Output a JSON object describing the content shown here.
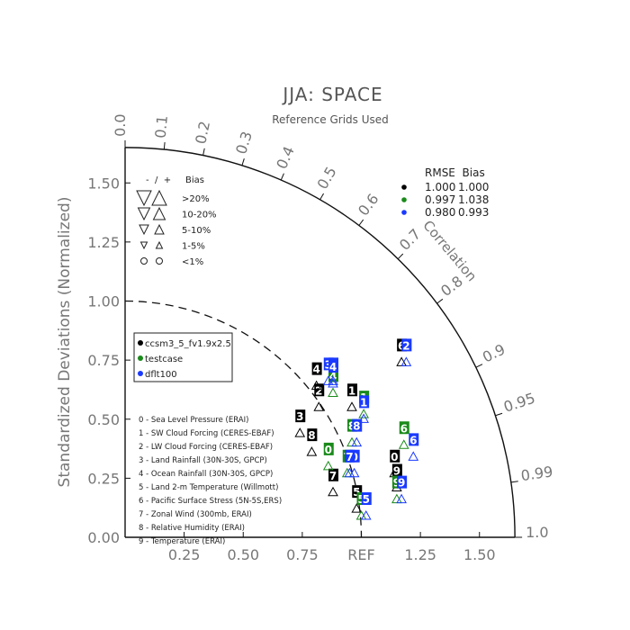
{
  "chart_data": {
    "type": "taylor",
    "title": "JJA: SPACE",
    "subtitle": "Reference Grids Used",
    "ylabel": "Standardized Deviations (Normalized)",
    "correlation_label": "Correlation",
    "ref_label": "REF",
    "std_range": [
      0,
      1.65
    ],
    "x_ticks": [
      "0.25",
      "0.50",
      "0.75",
      "1.25",
      "1.50"
    ],
    "y_ticks": [
      "0.00",
      "0.25",
      "0.50",
      "0.75",
      "1.00",
      "1.25",
      "1.50"
    ],
    "corr_ticks": [
      "0.0",
      "0.1",
      "0.2",
      "0.3",
      "0.4",
      "0.5",
      "0.6",
      "0.7",
      "0.8",
      "0.9",
      "0.95",
      "0.99",
      "1.0"
    ],
    "bias_legend": {
      "header": "-  /  +     Bias",
      "rows": [
        ">20%",
        "10-20%",
        "5-10%",
        "1-5%",
        "<1%"
      ]
    },
    "rmse_table": {
      "header": "RMSE  Bias",
      "rows": [
        {
          "color": "#000000",
          "rmse": "1.000",
          "bias": "1.000"
        },
        {
          "color": "#1a8a1a",
          "rmse": "0.997",
          "bias": "1.038"
        },
        {
          "color": "#1a3aff",
          "rmse": "0.980",
          "bias": "0.993"
        }
      ]
    },
    "cases": [
      {
        "name": "ccsm3_5_fv1.9x2.5",
        "color": "#000000"
      },
      {
        "name": "testcase",
        "color": "#1a8a1a"
      },
      {
        "name": "dflt100",
        "color": "#1a3aff"
      }
    ],
    "variables": [
      "0 - Sea Level Pressure (ERAI)",
      "1 - SW Cloud Forcing (CERES-EBAF)",
      "2 - LW Cloud Forcing (CERES-EBAF)",
      "3 - Land Rainfall (30N-30S, GPCP)",
      "4 - Ocean Rainfall (30N-30S, GPCP)",
      "5 - Land 2-m Temperature (Willmott)",
      "6 - Pacific Surface Stress (5N-5S,ERS)",
      "7 - Zonal Wind (300mb, ERAI)",
      "8 - Relative Humidity (ERAI)",
      "9 - Temperature (ERAI)"
    ],
    "points": [
      {
        "label": "0",
        "case": 0,
        "x": 1.14,
        "y": 0.34
      },
      {
        "label": "1",
        "case": 0,
        "x": 0.96,
        "y": 0.62
      },
      {
        "label": "2",
        "case": 0,
        "x": 0.82,
        "y": 0.62
      },
      {
        "label": "3",
        "case": 0,
        "x": 0.74,
        "y": 0.51
      },
      {
        "label": "4",
        "case": 0,
        "x": 0.81,
        "y": 0.71
      },
      {
        "label": "5",
        "case": 0,
        "x": 0.98,
        "y": 0.19
      },
      {
        "label": "6",
        "case": 0,
        "x": 1.17,
        "y": 0.81
      },
      {
        "label": "7",
        "case": 0,
        "x": 0.88,
        "y": 0.26
      },
      {
        "label": "8",
        "case": 0,
        "x": 0.79,
        "y": 0.43
      },
      {
        "label": "9",
        "case": 0,
        "x": 1.15,
        "y": 0.28
      },
      {
        "label": "0",
        "case": 1,
        "x": 0.86,
        "y": 0.37
      },
      {
        "label": "1",
        "case": 1,
        "x": 1.01,
        "y": 0.59
      },
      {
        "label": "4",
        "case": 1,
        "x": 0.88,
        "y": 0.68
      },
      {
        "label": "5",
        "case": 1,
        "x": 1.0,
        "y": 0.16
      },
      {
        "label": "6",
        "case": 1,
        "x": 1.18,
        "y": 0.46
      },
      {
        "label": "7",
        "case": 1,
        "x": 0.94,
        "y": 0.34
      },
      {
        "label": "8",
        "case": 1,
        "x": 0.96,
        "y": 0.47
      },
      {
        "label": "9",
        "case": 1,
        "x": 1.15,
        "y": 0.23
      },
      {
        "label": "0",
        "case": 2,
        "x": 0.97,
        "y": 0.34
      },
      {
        "label": "1",
        "case": 2,
        "x": 1.01,
        "y": 0.57
      },
      {
        "label": "2",
        "case": 2,
        "x": 0.88,
        "y": 0.73
      },
      {
        "label": "3",
        "case": 2,
        "x": 0.86,
        "y": 0.73
      },
      {
        "label": "4",
        "case": 2,
        "x": 0.88,
        "y": 0.72
      },
      {
        "label": "5",
        "case": 2,
        "x": 1.02,
        "y": 0.16
      },
      {
        "label": "6",
        "case": 2,
        "x": 1.22,
        "y": 0.41
      },
      {
        "label": "7",
        "case": 2,
        "x": 0.95,
        "y": 0.34
      },
      {
        "label": "8",
        "case": 2,
        "x": 0.98,
        "y": 0.47
      },
      {
        "label": "9",
        "case": 2,
        "x": 1.17,
        "y": 0.23
      },
      {
        "label": "2",
        "case": 2,
        "x": 1.19,
        "y": 0.81
      }
    ]
  }
}
